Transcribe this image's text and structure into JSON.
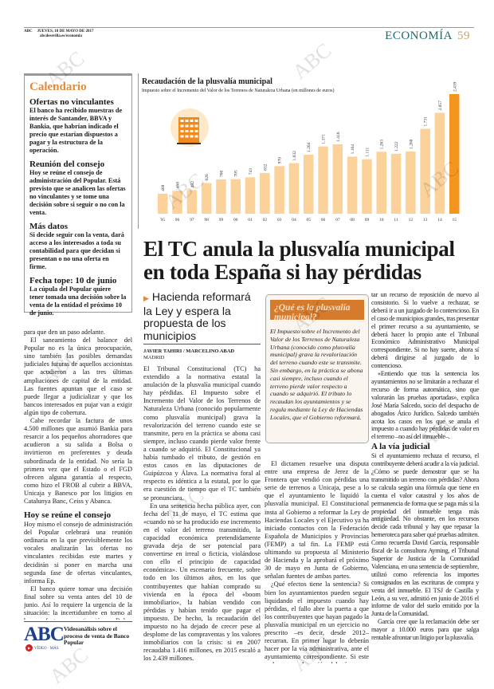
{
  "header": {
    "brand": "ABC",
    "date": "JUEVES, 18 DE MAYO DE 2017",
    "url": "abcdesevilla.es/economia",
    "section": "ECONOMÍA",
    "page": "59"
  },
  "sidebar": {
    "title": "Calendario",
    "items": [
      {
        "heading": "Ofertas no vinculantes",
        "text": "El banco ha recibido muestras de interés de Santander, BBVA y Bankia, que habrían indicado el precio que estarían dispuestos a pagar y la estructura de la operación."
      },
      {
        "heading": "Reunión del consejo",
        "text": "Hoy se reúne el consejo de administración del Popular. Está previsto que se analicen las ofertas no vinculantes y se tome una decisión sobre si seguir o no con la venta."
      },
      {
        "heading": "Más datos",
        "text": "Si decide seguir con la venta, dará acceso a los interesados a toda su contabilidad para que decidan si presentan o no una oferta en firme."
      },
      {
        "heading": "Fecha tope: 10 de junio",
        "text": "La cúpula del Popular quiere tener tomada una decisión sobre la venta de la entidad el próximo 10 de junio."
      }
    ]
  },
  "left_column": {
    "paragraphs": [
      "para que den un paso adelante.",
      "El saneamiento del balance del Popular no es la única preocupación, sino también las posibles demandas judiciales futuras de aquellos accionistas que acudieron a las tres últimas ampliaciones de capital de la entidad. Las fuentes apuntan que el caso se puede llegar a judicializar y que los bancos interesados en pujar van a exigir algún tipo de cobertura.",
      "Cabe recordar la factura de unos 4.500 millones que asumió Bankia para resarcir a los pequeños ahorradores que acudieron a su salida a Bolsa o invirtieron en preferentes y deuda subordinada de la entidad. No sería la primera vez que el Estado o el FGD ofrecen alguna garantía al respecto, como hizo el FROB al cubrir a BBVA, Unicaja y Banesco por los litigios en Catalunya Banc, Ceiss y Abanca."
    ],
    "subheading": "Hoy se reúne el consejo",
    "paragraphs2": [
      "Hoy mismo el consejo de administración del Popular celebrará una reunión ordinaria en la que previsiblemente los vocales analizarán las ofertas no vinculantes recibidas este martes y decidirán si poner en marcha una segunda fase de ofertas vinculantes, informa Ep.",
      "El banco quiere tomar una decisión final sobre su venta antes del 10 de junio. Así lo requiere la urgencia de la situación: la incertidumbre en torno al banco afecta a su cotización en Bolsa, pero podría empezar a lastrar también la capacidad comercial de su red."
    ],
    "promo": {
      "logo": "ABC",
      "logo_sub": "VÍDEO · MÁS",
      "text": "Videoanálisis sobre el proceso de venta de Banco Popular"
    }
  },
  "chart_data": {
    "type": "bar",
    "title": "Recaudación de la plusvalía municipal",
    "subtitle": "Impuesto sobre el Incremento del Valor de los Terrenos de Naturaleza Urbana (en millones de euros)",
    "categories": [
      "95",
      "96",
      "97",
      "98",
      "99",
      "00",
      "01",
      "02",
      "03",
      "04",
      "05",
      "06",
      "07",
      "08",
      "09",
      "10",
      "11",
      "12",
      "13",
      "14",
      "15"
    ],
    "values": [
      408,
      468,
      482,
      626,
      700,
      705,
      743,
      832,
      970,
      1032,
      1204,
      1371,
      1416,
      1164,
      1111,
      1263,
      1222,
      1268,
      1731,
      2057,
      2439
    ],
    "data_labels": [
      "408",
      "468",
      "482",
      "626",
      "700",
      "705",
      "743",
      "832",
      "970",
      "1.032",
      "1.204",
      "1.371",
      "1.416",
      "1.164",
      "1.111",
      "1.263",
      "1.222",
      "1.268",
      "1.731",
      "2.057",
      "2.439"
    ],
    "ylim": [
      0,
      2439
    ],
    "grid": false,
    "colors": {
      "bar": "#fbd29a",
      "highlight": "#f4961e",
      "icon": "#f08a1c",
      "icon_bg": "#fde8c8"
    },
    "icon": "building-icon"
  },
  "article": {
    "headline_line1": "El TC anula la plusvalía municipal",
    "headline_line2": "en toda España si hay pérdidas",
    "subhead": "Hacienda reformará la Ley y espera la propuesta de los municipios",
    "byline": "JAVIER TAHIRI / MARCELINO ABAD",
    "place": "MADRID",
    "col1": [
      "El Tribunal Constitucional (TC) ha extendido a la normativa estatal la anulación de la plusvalía municipal cuando hay pérdidas. El Impuesto sobre el Incremento del Valor de los Terrenos de Naturaleza Urbana (conocido popularmente como plusvalía municipal) grava la revalorización del terreno cuando este se transmite, pero en la práctica se abona casi siempre, incluso cuando pierde valor frente a cuando se adquirió. El Constitucional ya había tumbado el tributo, de gestión en estos casos en las diputaciones de Guipúzcoa y Álava. La normativa foral al respecto es idéntica a la estatal, por lo que era cuestión de tiempo que el TC también se pronunciara.",
      "En una sentencia hecha pública ayer, con fecha del 11 de mayo, el TC estima que «cuando no se ha producido ese incremento en el valor del terreno transmitido, la capacidad económica pretendidamente gravada deja de ser potencial para convertirse en irreal o ficticia, violándose con ello el principio de capacidad económica». Un escenario frecuente, sobre todo en los últimos años, en los que contribuyentes que habían comprado su vivienda en la época del «boom inmobiliario», la habían vendido con pérdidas y habían tenido que pagar el impuesto. De hecho, la recaudación del impuesto no ha dejado de crecer pese al desplome de las compraventas y los valores inmobiliarios con la crisis: si en 2007 recaudaba 1.416 millones, en 2015 escaló a los 2.439 millones."
    ],
    "box": {
      "title": "¿Qué es la plusvalía municipal?",
      "text": "El Impuesto sobre el Incremento del Valor de los Terrenos de Naturaleza Urbana (conocido como plusvalía municipal) grava la revalorización del terreno cuando este se transmite. Sin embargo, en la práctica se abona casi siempre, incluso cuando el terreno pierde valor respecto a cuando se adquirió. El tributo lo recaudan los ayuntamientos y se regula mediante la Ley de Haciendas Locales, que el Gobierno reformará."
    },
    "col2": [
      "El dictamen resuelve una disputa entre una empresa de Jerez de la Frontera que vendió con pérdidas una serie de terrenos a Unicaja, pese a lo que el ayuntamiento le liquidó la plusvalía municipal. El Constitucional insta al Gobierno a reformar la Ley de Haciendas Locales y el Ejecutivo ya ha iniciado contactos con la Federación Española de Municipios y Provincias (FEMP) a tal fin. La FEMP está ultimando su propuesta al Ministerio de Hacienda y la aprobará el próximo 30 de mayo en Junta de Gobierno, señalan fuentes de ambas partes.",
      "¿Qué efectos tiene la sentencia? Si bien los ayuntamientos pueden seguir liquidando el impuesto cuando hay pérdidas, el fallo abre la puerta a que los contribuyentes que hayan pagado la plusvalía municipal en un ejercicio no prescrito –es decir, desde 2012– recurran. En primer lugar lo deberán hacer por la vía administrativa, ante el ayuntamiento correspondiente. Si este rechaza su reclamación, deberá presen-"
    ],
    "col3": [
      "tar un recurso de reposición de nuevo al consistorio. Si lo vuelve a rechazar, se deberá ir a un juzgado de lo contencioso. En el caso de municipios grandes, tras presentar el primer recurso a su ayuntamiento, se deberá hacer lo propio ante el Tribunal Económico Administrativo Municipal correspondiente. Si no hay suerte, ahora sí deberá dirigirse al juzgado de lo contencioso.",
      "«Entiendo que tras la sentencia los ayuntamientos no se limitarán a rechazar el recurso de forma automática, sino que valorarán las pruebas aportadas», explica José María Salcedo, socio del despacho de abogados Ático Jurídico. Salcedo también acota los casos en los que se anula el impuesto a cuando hay pérdidas de valor en el terreno –no así del inmueble–."
    ],
    "col3_subheading": "A la vía judicial",
    "col3b": [
      "Si el ayuntamiento rechaza el recurso, el contribuyente deberá acudir a la vía judicial. ¿Cómo se puede demostrar que se ha transmitido un terreno con pérdidas? Ahora se calcula según una fórmula que tiene en cuenta el valor catastral y los años de permanencia de forma que se paga más si la propiedad del inmueble tenga más antigüedad. No obstante, en los recursos decide cada tribunal y hay que repasar la hemeroteca para saber qué pruebas admiten. Como recuerda David García, responsable fiscal de la consultora Ayming, el Tribunal Superior de Justicia de la Comunidad Valenciana, en una sentencia de septiembre, utilizó como referencia los importes consignados en las escrituras de compra y venta del inmueble. El TSJ de Castilla y León, a su vez, admitió en junio de 2016 el informe de valor del suelo emitido por la Junta de la Comunidad.",
      "García cree que la reclamación debe ser mayor a 10.000 euros para que salga rentable afrontar un litigio por la plusvalía."
    ]
  },
  "watermark": "ABC"
}
